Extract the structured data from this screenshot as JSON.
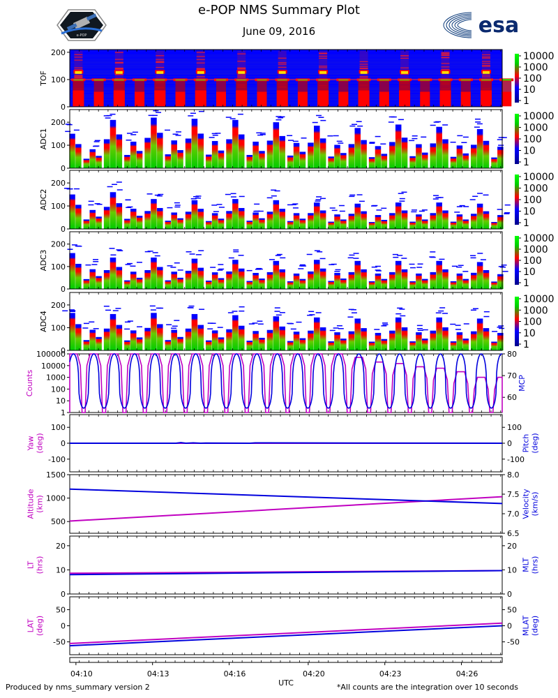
{
  "header": {
    "title": "e-POP NMS Summary Plot",
    "date": "June 09, 2016",
    "esa_wordmark": "esa",
    "left_logo_text": "e-POP"
  },
  "footer": {
    "left_note": "Produced by nms_summary version 2",
    "right_note": "*All counts are the integration over 10 seconds",
    "xlabel": "UTC"
  },
  "colors": {
    "magenta": "#c000c0",
    "blue": "#0000dd",
    "spec_low": "#0000ff",
    "spec_mid": "#ff0000",
    "spec_high": "#00cc00"
  },
  "chart_data": [
    {
      "type": "heatmap",
      "name": "tof",
      "ylabel": "TOF",
      "ylim": [
        0,
        210
      ],
      "yticks": [
        "0",
        "100",
        "200"
      ],
      "ytick_values": [
        0,
        100,
        200
      ],
      "colorbar": [
        "10000",
        "1000",
        "100",
        "10",
        "1"
      ],
      "n_bursts": 11,
      "burst_period_min": 1.65
    },
    {
      "type": "heatmap",
      "name": "adc1",
      "ylabel": "ADC1",
      "ylim": [
        0,
        255
      ],
      "yticks": [
        "0",
        "100",
        "200"
      ],
      "ytick_values": [
        0,
        100,
        200
      ],
      "colorbar": [
        "10000",
        "1000",
        "100",
        "10",
        "1"
      ],
      "peak_values": [
        150,
        210,
        220,
        215,
        210,
        200,
        185,
        175,
        190,
        180,
        170
      ]
    },
    {
      "type": "heatmap",
      "name": "adc2",
      "ylabel": "ADC2",
      "ylim": [
        0,
        255
      ],
      "yticks": [
        "0",
        "100",
        "200"
      ],
      "ytick_values": [
        0,
        100,
        200
      ],
      "colorbar": [
        "10000",
        "1000",
        "100",
        "10",
        "1"
      ],
      "peak_values": [
        150,
        160,
        130,
        125,
        130,
        125,
        115,
        110,
        115,
        115,
        110
      ]
    },
    {
      "type": "heatmap",
      "name": "adc3",
      "ylabel": "ADC3",
      "ylim": [
        0,
        255
      ],
      "yticks": [
        "0",
        "100",
        "200"
      ],
      "ytick_values": [
        0,
        100,
        200
      ],
      "colorbar": [
        "10000",
        "1000",
        "100",
        "10",
        "1"
      ],
      "peak_values": [
        160,
        140,
        140,
        135,
        130,
        125,
        130,
        125,
        125,
        125,
        120
      ]
    },
    {
      "type": "heatmap",
      "name": "adc4",
      "ylabel": "ADC4",
      "ylim": [
        0,
        255
      ],
      "yticks": [
        "0",
        "100",
        "200"
      ],
      "ytick_values": [
        0,
        100,
        200
      ],
      "colorbar": [
        "10000",
        "1000",
        "100",
        "10",
        "1"
      ],
      "peak_values": [
        165,
        160,
        165,
        160,
        155,
        150,
        145,
        140,
        145,
        145,
        140
      ]
    },
    {
      "type": "line",
      "name": "counts_mcp",
      "ylabel_left": "Counts",
      "ylabel_right": "MCP",
      "left_log": true,
      "left_ylim": [
        1,
        100000
      ],
      "left_ticks": [
        "1",
        "10",
        "100",
        "1000",
        "10000",
        "100000"
      ],
      "left_tick_values": [
        1,
        10,
        100,
        1000,
        10000,
        100000
      ],
      "right_ylim": [
        53,
        80
      ],
      "right_ticks": [
        "60",
        "70",
        "80"
      ],
      "right_tick_values": [
        60,
        70,
        80
      ],
      "series": [
        {
          "name": "Counts",
          "axis": "left",
          "color": "magenta",
          "peak_values": [
            100000,
            100000,
            100000,
            100000,
            100000,
            100000,
            100000,
            100000,
            100000,
            100000,
            100000,
            100000,
            100000,
            100000,
            50000,
            20000,
            15000,
            8000,
            6000,
            3000,
            1000,
            1000
          ],
          "low_value": 1
        },
        {
          "name": "MCP",
          "axis": "right",
          "color": "blue",
          "high_value": 80,
          "low_value": 55
        }
      ],
      "period_min": 0.825
    },
    {
      "type": "line",
      "name": "yaw_pitch",
      "ylabel_left": "Yaw\n(deg)",
      "ylabel_right": "Pitch\n(deg)",
      "left_ylim": [
        -180,
        180
      ],
      "left_ticks": [
        "-100",
        "0",
        "100"
      ],
      "left_tick_values": [
        -100,
        0,
        100
      ],
      "right_ylim": [
        -180,
        180
      ],
      "right_ticks": [
        "-100",
        "0",
        "100"
      ],
      "right_tick_values": [
        -100,
        0,
        100
      ],
      "series": [
        {
          "name": "Yaw",
          "axis": "left",
          "color": "magenta",
          "x": [
            0,
            17.5
          ],
          "y": [
            0,
            0
          ]
        },
        {
          "name": "Pitch",
          "axis": "right",
          "color": "blue",
          "x": [
            0,
            4.3,
            4.5,
            4.7,
            5.0,
            5.3,
            5.5,
            7.3,
            7.5,
            17.5
          ],
          "y": [
            0,
            0,
            4,
            0,
            2,
            0,
            1,
            0,
            2,
            0
          ]
        }
      ]
    },
    {
      "type": "line",
      "name": "altitude_velocity",
      "ylabel_left": "Altitude\n(km)",
      "ylabel_right": "Velocity\n(km/s)",
      "left_ylim": [
        250,
        1500
      ],
      "left_ticks": [
        "500",
        "1000",
        "1500"
      ],
      "left_tick_values": [
        500,
        1000,
        1500
      ],
      "right_ylim": [
        6.5,
        8.0
      ],
      "right_ticks": [
        "6.5",
        "7.0",
        "7.5",
        "8.0"
      ],
      "right_tick_values": [
        6.5,
        7.0,
        7.5,
        8.0
      ],
      "series": [
        {
          "name": "Altitude",
          "axis": "left",
          "color": "magenta",
          "x": [
            0,
            17.5
          ],
          "y": [
            510,
            1030
          ]
        },
        {
          "name": "Velocity",
          "axis": "right",
          "color": "blue",
          "x": [
            0,
            17.5
          ],
          "y": [
            7.63,
            7.26
          ]
        }
      ]
    },
    {
      "type": "line",
      "name": "lt_mlt",
      "ylabel_left": "LT\n(hrs)",
      "ylabel_right": "MLT\n(hrs)",
      "left_ylim": [
        0,
        24
      ],
      "left_ticks": [
        "0",
        "10",
        "20"
      ],
      "left_tick_values": [
        0,
        10,
        20
      ],
      "right_ylim": [
        0,
        24
      ],
      "right_ticks": [
        "0",
        "10",
        "20"
      ],
      "right_tick_values": [
        0,
        10,
        20
      ],
      "series": [
        {
          "name": "LT",
          "axis": "left",
          "color": "magenta",
          "x": [
            0,
            17.5
          ],
          "y": [
            8.6,
            9.7
          ]
        },
        {
          "name": "MLT",
          "axis": "right",
          "color": "blue",
          "x": [
            0,
            17.5
          ],
          "y": [
            8.0,
            9.7
          ]
        }
      ]
    },
    {
      "type": "line",
      "name": "lat_mlat",
      "ylabel_left": "LAT\n(deg)",
      "ylabel_right": "MLAT\n(deg)",
      "left_ylim": [
        -90,
        90
      ],
      "left_ticks": [
        "-50",
        "0",
        "50"
      ],
      "left_tick_values": [
        -50,
        0,
        50
      ],
      "right_ylim": [
        -90,
        90
      ],
      "right_ticks": [
        "-50",
        "0",
        "50"
      ],
      "right_tick_values": [
        -50,
        0,
        50
      ],
      "series": [
        {
          "name": "LAT",
          "axis": "left",
          "color": "magenta",
          "x": [
            0,
            17.5
          ],
          "y": [
            -55,
            8
          ]
        },
        {
          "name": "MLAT",
          "axis": "right",
          "color": "blue",
          "x": [
            0,
            17.5
          ],
          "y": [
            -62,
            0
          ]
        }
      ]
    },
    {
      "type": "line",
      "name": "time_axis",
      "xlim": [
        0,
        17.5
      ],
      "xticks": [
        "04:10",
        "04:13",
        "04:16",
        "04:20",
        "04:23",
        "04:26"
      ],
      "xtick_values": [
        0.25,
        3.35,
        6.45,
        9.65,
        12.75,
        15.85
      ]
    }
  ]
}
